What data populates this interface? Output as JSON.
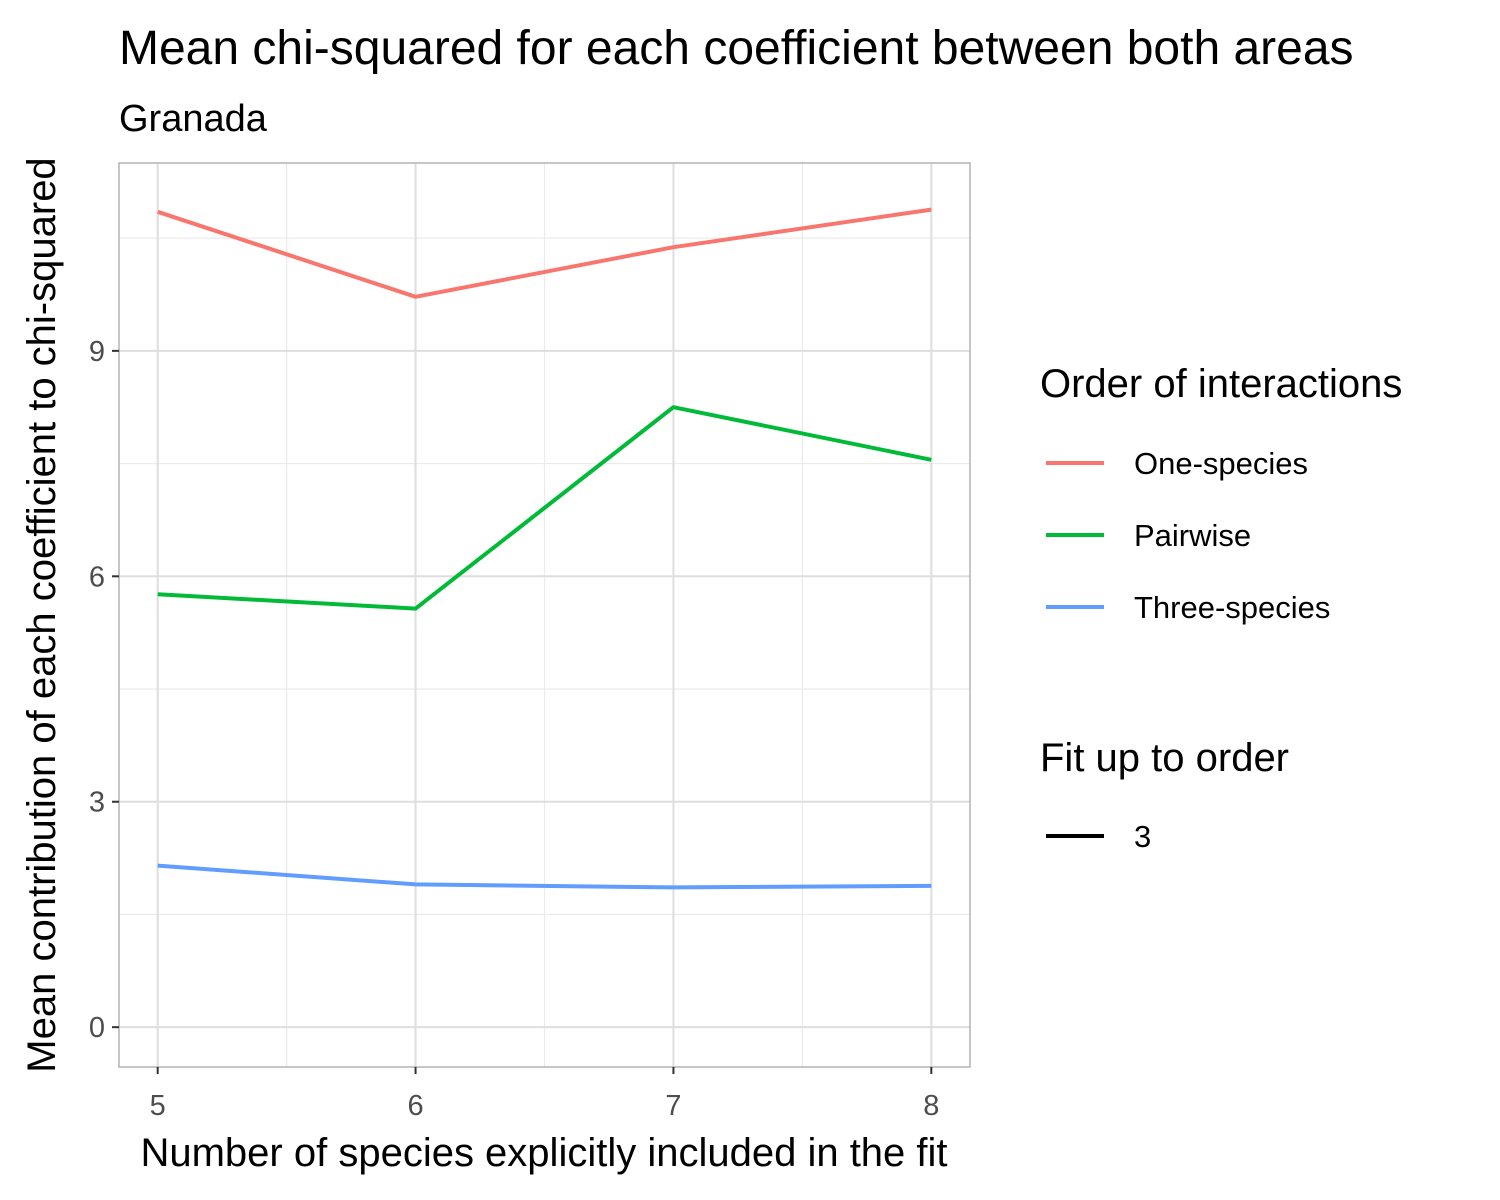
{
  "chart_data": {
    "type": "line",
    "title": "Mean chi-squared for each coefficient between both areas",
    "subtitle": "Granada",
    "xlabel": "Number of species explicitly included in the fit",
    "ylabel": "Mean contribution of each coefficient to chi-squared",
    "x": [
      5,
      6,
      7,
      8
    ],
    "x_ticks": [
      5,
      6,
      7,
      8
    ],
    "xlim": [
      4.85,
      8.15
    ],
    "y_ticks": [
      0,
      3,
      6,
      9
    ],
    "ylim": [
      -0.53,
      11.5
    ],
    "grid": true,
    "legend_position": "right",
    "series": [
      {
        "name": "One-species",
        "color": "#F8766D",
        "values": [
          10.85,
          9.72,
          10.38,
          10.88
        ]
      },
      {
        "name": "Pairwise",
        "color": "#00BA38",
        "values": [
          5.76,
          5.57,
          8.25,
          7.55
        ]
      },
      {
        "name": "Three-species",
        "color": "#619CFF",
        "values": [
          2.15,
          1.9,
          1.86,
          1.88
        ]
      }
    ],
    "legend": {
      "color_title": "Order of interactions",
      "linetype_title": "Fit up to order",
      "linetype_entries": [
        {
          "label": "3",
          "color": "#000000"
        }
      ]
    }
  }
}
